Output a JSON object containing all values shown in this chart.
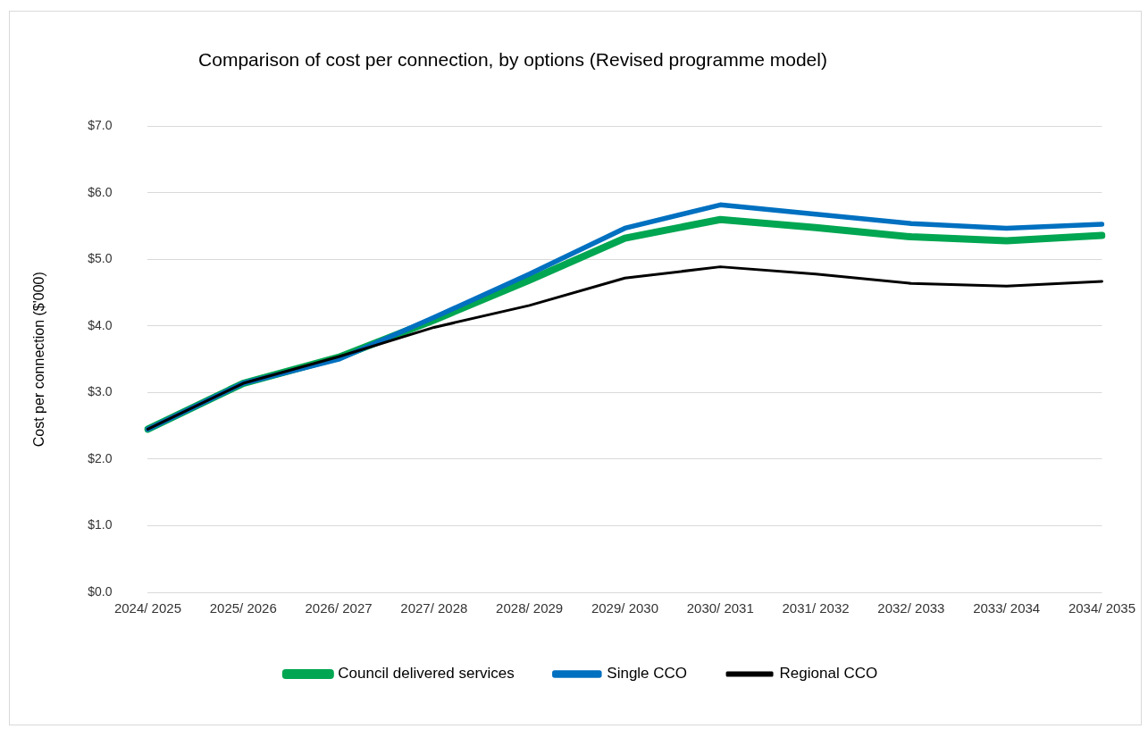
{
  "chart_data": {
    "type": "line",
    "title": "Comparison of cost per connection, by options (Revised programme model)",
    "ylabel": "Cost per connection ($'000)",
    "categories": [
      "2024/ 2025",
      "2025/ 2026",
      "2026/ 2027",
      "2027/ 2028",
      "2028/ 2029",
      "2029/ 2030",
      "2030/ 2031",
      "2031/ 2032",
      "2032/ 2033",
      "2033/ 2034",
      "2034/ 2035"
    ],
    "series": [
      {
        "name": "Council delivered services",
        "color": "#00a651",
        "values": [
          2.45,
          3.14,
          3.53,
          4.09,
          4.69,
          5.32,
          5.6,
          5.48,
          5.34,
          5.28,
          5.36
        ]
      },
      {
        "name": "Single CCO",
        "color": "#0070c0",
        "values": [
          2.45,
          3.14,
          3.5,
          4.13,
          4.78,
          5.47,
          5.82,
          5.68,
          5.54,
          5.47,
          5.53
        ]
      },
      {
        "name": "Regional CCO",
        "color": "#000000",
        "values": [
          2.45,
          3.14,
          3.54,
          3.98,
          4.31,
          4.72,
          4.89,
          4.78,
          4.64,
          4.6,
          4.67
        ]
      }
    ],
    "ylim": [
      0,
      7
    ],
    "yticks": [
      {
        "value": 0,
        "label": "$0.0"
      },
      {
        "value": 1,
        "label": "$1.0"
      },
      {
        "value": 2,
        "label": "$2.0"
      },
      {
        "value": 3,
        "label": "$3.0"
      },
      {
        "value": 4,
        "label": "$4.0"
      },
      {
        "value": 5,
        "label": "$5.0"
      },
      {
        "value": 6,
        "label": "$6.0"
      },
      {
        "value": 7,
        "label": "$7.0"
      }
    ],
    "grid": "y",
    "legend": "bottom",
    "marker": "none",
    "line_style": "solid"
  }
}
